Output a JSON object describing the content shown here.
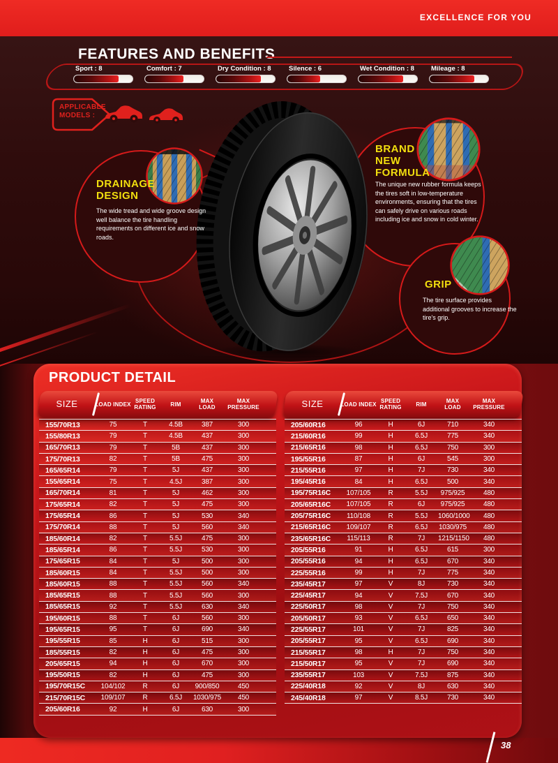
{
  "page": {
    "tagline": "EXCELLENCE FOR YOU",
    "page_number": "38"
  },
  "features": {
    "title": "FEATURES AND BENEFITS",
    "ratings": [
      {
        "label": "Sport",
        "value": 8
      },
      {
        "label": "Comfort",
        "value": 7
      },
      {
        "label": "Dry Condition",
        "value": 8
      },
      {
        "label": "Silence",
        "value": 6
      },
      {
        "label": "Wet Condition",
        "value": 8
      },
      {
        "label": "Mileage",
        "value": 8
      }
    ]
  },
  "applicable_models": {
    "label": "APPLICABLE MODELS :",
    "icons": [
      "sedan-car-icon",
      "coupe-car-icon"
    ]
  },
  "callouts": [
    {
      "id": "drainage-design",
      "title": "DRAINAGE DESIGN",
      "body": "The wide tread and wide groove design well balance the tire handling requirements on different ice and snow roads."
    },
    {
      "id": "brand-new-formula",
      "title": "BRAND NEW FORMULA",
      "body": "The unique new rubber formula keeps the tires soft in low-temperature environments, ensuring that the tires can safely drive on various roads including ice and snow in cold winter."
    },
    {
      "id": "grip",
      "title": "GRIP",
      "body": "The tire surface provides additional grooves to increase the tire's grip."
    }
  ],
  "product_detail": {
    "title": "PRODUCT DETAIL",
    "columns": [
      "SIZE",
      "LOAD INDEX",
      "SPEED RATING",
      "RIM",
      "MAX LOAD",
      "MAX PRESSURE"
    ],
    "left_rows": [
      [
        "155/70R13",
        "75",
        "T",
        "4.5B",
        "387",
        "300"
      ],
      [
        "155/80R13",
        "79",
        "T",
        "4.5B",
        "437",
        "300"
      ],
      [
        "165/70R13",
        "79",
        "T",
        "5B",
        "437",
        "300"
      ],
      [
        "175/70R13",
        "82",
        "T",
        "5B",
        "475",
        "300"
      ],
      [
        "165/65R14",
        "79",
        "T",
        "5J",
        "437",
        "300"
      ],
      [
        "155/65R14",
        "75",
        "T",
        "4.5J",
        "387",
        "300"
      ],
      [
        "165/70R14",
        "81",
        "T",
        "5J",
        "462",
        "300"
      ],
      [
        "175/65R14",
        "82",
        "T",
        "5J",
        "475",
        "300"
      ],
      [
        "175/65R14",
        "86",
        "T",
        "5J",
        "530",
        "340"
      ],
      [
        "175/70R14",
        "88",
        "T",
        "5J",
        "560",
        "340"
      ],
      [
        "185/60R14",
        "82",
        "T",
        "5.5J",
        "475",
        "300"
      ],
      [
        "185/65R14",
        "86",
        "T",
        "5.5J",
        "530",
        "300"
      ],
      [
        "175/65R15",
        "84",
        "T",
        "5J",
        "500",
        "300"
      ],
      [
        "185/60R15",
        "84",
        "T",
        "5.5J",
        "500",
        "300"
      ],
      [
        "185/60R15",
        "88",
        "T",
        "5.5J",
        "560",
        "340"
      ],
      [
        "185/65R15",
        "88",
        "T",
        "5.5J",
        "560",
        "300"
      ],
      [
        "185/65R15",
        "92",
        "T",
        "5.5J",
        "630",
        "340"
      ],
      [
        "195/60R15",
        "88",
        "T",
        "6J",
        "560",
        "300"
      ],
      [
        "195/65R15",
        "95",
        "T",
        "6J",
        "690",
        "340"
      ],
      [
        "195/55R15",
        "85",
        "H",
        "6J",
        "515",
        "300"
      ],
      [
        "185/55R15",
        "82",
        "H",
        "6J",
        "475",
        "300"
      ],
      [
        "205/65R15",
        "94",
        "H",
        "6J",
        "670",
        "300"
      ],
      [
        "195/50R15",
        "82",
        "H",
        "6J",
        "475",
        "300"
      ],
      [
        "195/70R15C",
        "104/102",
        "R",
        "6J",
        "900/850",
        "450"
      ],
      [
        "215/70R15C",
        "109/107",
        "R",
        "6.5J",
        "1030/975",
        "450"
      ],
      [
        "205/60R16",
        "92",
        "H",
        "6J",
        "630",
        "300"
      ]
    ],
    "right_rows": [
      [
        "205/60R16",
        "96",
        "H",
        "6J",
        "710",
        "340"
      ],
      [
        "215/60R16",
        "99",
        "H",
        "6.5J",
        "775",
        "340"
      ],
      [
        "215/65R16",
        "98",
        "H",
        "6.5J",
        "750",
        "300"
      ],
      [
        "195/55R16",
        "87",
        "H",
        "6J",
        "545",
        "300"
      ],
      [
        "215/55R16",
        "97",
        "H",
        "7J",
        "730",
        "340"
      ],
      [
        "195/45R16",
        "84",
        "H",
        "6.5J",
        "500",
        "340"
      ],
      [
        "195/75R16C",
        "107/105",
        "R",
        "5.5J",
        "975/925",
        "480"
      ],
      [
        "205/65R16C",
        "107/105",
        "R",
        "6J",
        "975/925",
        "480"
      ],
      [
        "205/75R16C",
        "110/108",
        "R",
        "5.5J",
        "1060/1000",
        "480"
      ],
      [
        "215/65R16C",
        "109/107",
        "R",
        "6.5J",
        "1030/975",
        "480"
      ],
      [
        "235/65R16C",
        "115/113",
        "R",
        "7J",
        "1215/1150",
        "480"
      ],
      [
        "205/55R16",
        "91",
        "H",
        "6.5J",
        "615",
        "300"
      ],
      [
        "205/55R16",
        "94",
        "H",
        "6.5J",
        "670",
        "340"
      ],
      [
        "225/55R16",
        "99",
        "H",
        "7J",
        "775",
        "340"
      ],
      [
        "235/45R17",
        "97",
        "V",
        "8J",
        "730",
        "340"
      ],
      [
        "225/45R17",
        "94",
        "V",
        "7.5J",
        "670",
        "340"
      ],
      [
        "225/50R17",
        "98",
        "V",
        "7J",
        "750",
        "340"
      ],
      [
        "205/50R17",
        "93",
        "V",
        "6.5J",
        "650",
        "340"
      ],
      [
        "225/55R17",
        "101",
        "V",
        "7J",
        "825",
        "340"
      ],
      [
        "205/55R17",
        "95",
        "V",
        "6.5J",
        "690",
        "340"
      ],
      [
        "215/55R17",
        "98",
        "H",
        "7J",
        "750",
        "340"
      ],
      [
        "215/50R17",
        "95",
        "V",
        "7J",
        "690",
        "340"
      ],
      [
        "235/55R17",
        "103",
        "V",
        "7.5J",
        "875",
        "340"
      ],
      [
        "225/40R18",
        "92",
        "V",
        "8J",
        "630",
        "340"
      ],
      [
        "245/40R18",
        "97",
        "V",
        "8.5J",
        "730",
        "340"
      ]
    ]
  },
  "colors": {
    "top_bar_red": "#e8221f",
    "accent_red": "#d51a1a",
    "hero_maroon": "#2e0b0b",
    "panel_red": "#b01114",
    "highlight_yellow": "#f2df0e",
    "text": "#ffffff"
  }
}
